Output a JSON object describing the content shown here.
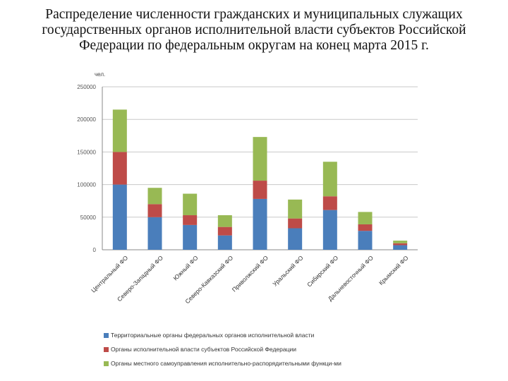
{
  "title": {
    "line1": "Распределение численности гражданских и муниципальных служащих",
    "line2": "государственных органов исполнительной власти субъектов Российской",
    "line3": "Федерации по федеральным округам на конец марта 2015 г."
  },
  "chart_data": {
    "type": "bar",
    "stacked": true,
    "unit_label": "чел.",
    "ylim": [
      0,
      250000
    ],
    "yticks": [
      0,
      50000,
      100000,
      150000,
      200000,
      250000
    ],
    "ytick_labels": [
      "0",
      "50000",
      "100000",
      "150000",
      "200000",
      "250000"
    ],
    "grid": true,
    "legend_position": "bottom",
    "categories": [
      "Центральный ФО",
      "Северо-Западный ФО",
      "Южный ФО",
      "Северо-Кавказский ФО",
      "Приволжский ФО",
      "Уральский ФО",
      "Сибирский ФО",
      "Дальневосточный ФО",
      "Крымский ФО"
    ],
    "series": [
      {
        "name": "Территориальные органы федеральных органов исполнительной власти",
        "color": "#4a7ebb",
        "values": [
          100000,
          50000,
          38000,
          22000,
          78000,
          33000,
          61000,
          29000,
          7000
        ]
      },
      {
        "name": "Органы исполнительной власти субъектов Российской Федерации",
        "color": "#be4b48",
        "values": [
          50000,
          20000,
          15000,
          13000,
          28000,
          15000,
          21000,
          10000,
          3000
        ]
      },
      {
        "name": "Органы местного самоуправления исполнительно-распорядительными функци-ми",
        "color": "#98b954",
        "values": [
          65000,
          25000,
          33000,
          18000,
          67000,
          29000,
          53000,
          19000,
          4000
        ]
      }
    ]
  }
}
